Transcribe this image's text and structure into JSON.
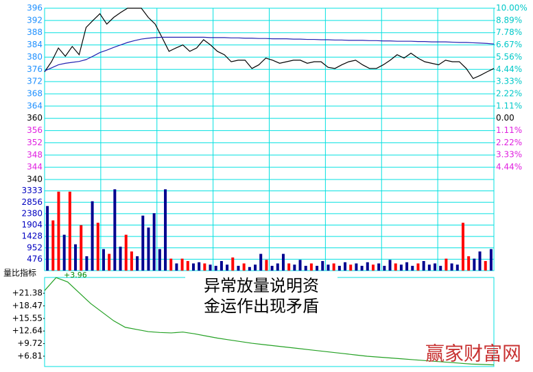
{
  "chart_data": [
    {
      "type": "line",
      "ylim": [
        340,
        396
      ],
      "yticks": [
        396,
        392,
        388,
        384,
        380,
        376,
        372,
        368,
        364,
        360,
        356,
        352,
        348,
        344,
        340
      ],
      "y2lim": [
        -5.56,
        10
      ],
      "y2ticks": [
        {
          "value": 10,
          "label": "10.00%"
        },
        {
          "value": 8.89,
          "label": "8.89%"
        },
        {
          "value": 7.78,
          "label": "7.78%"
        },
        {
          "value": 6.67,
          "label": "6.67%"
        },
        {
          "value": 5.56,
          "label": "5.56%"
        },
        {
          "value": 4.44,
          "label": "4.44%"
        },
        {
          "value": 3.33,
          "label": "3.33%"
        },
        {
          "value": 2.22,
          "label": "2.22%"
        },
        {
          "value": 1.11,
          "label": "1.11%"
        },
        {
          "value": 0,
          "label": "0.00"
        },
        {
          "value": -1.11,
          "label": "1.11%"
        },
        {
          "value": -2.22,
          "label": "2.22%"
        },
        {
          "value": -3.33,
          "label": "3.33%"
        },
        {
          "value": -4.44,
          "label": "4.44%"
        }
      ],
      "up_color": "#1e90ff",
      "down_color": "#e020e0",
      "flat_color": "#000000",
      "grid": true,
      "grid_color": "#00e0e0",
      "series": [
        {
          "color": "#000000",
          "values": [
            375.2,
            378.5,
            383,
            380.3,
            383.5,
            380.8,
            389.7,
            392,
            394.2,
            390.8,
            393,
            394.6,
            396,
            396,
            396,
            393,
            390.8,
            386.4,
            381.9,
            383,
            384,
            381.9,
            383,
            385.7,
            384,
            381.9,
            380.8,
            378.5,
            379,
            379,
            376.3,
            377.5,
            379.7,
            379,
            378,
            378.5,
            379,
            379,
            378,
            378.5,
            378.5,
            376.7,
            376.3,
            377.5,
            378.5,
            379,
            377.5,
            376.3,
            376.3,
            377.5,
            379,
            380.8,
            379.7,
            381.3,
            379.7,
            378.5,
            378,
            377.5,
            379,
            378.5,
            378.5,
            376.3,
            373,
            374,
            375.2,
            376.3
          ]
        },
        {
          "color": "#2020b0",
          "values": [
            375.5,
            376.5,
            377.5,
            378,
            378.3,
            378.6,
            379.2,
            380.3,
            381.5,
            382.3,
            383.2,
            384,
            384.8,
            385.4,
            385.9,
            386.2,
            386.4,
            386.5,
            386.5,
            386.5,
            386.5,
            386.5,
            386.5,
            386.5,
            386.4,
            386.4,
            386.4,
            386.3,
            386.3,
            386.2,
            386.2,
            386.1,
            386.1,
            386,
            386,
            386,
            385.9,
            385.9,
            385.8,
            385.8,
            385.7,
            385.7,
            385.6,
            385.6,
            385.5,
            385.5,
            385.5,
            385.4,
            385.4,
            385.3,
            385.3,
            385.2,
            385.2,
            385.2,
            385.1,
            385.1,
            385,
            385,
            385,
            384.9,
            384.8,
            384.8,
            384.7,
            384.6,
            384.5,
            384.3
          ]
        }
      ]
    },
    {
      "type": "bar",
      "ylim": [
        0,
        3810
      ],
      "yticks": [
        476,
        952,
        1428,
        1904,
        2380,
        2856,
        3333
      ],
      "tick_color": "#0000c0",
      "grid": true,
      "grid_color": "#00e0e0",
      "up_color": "#ff0000",
      "down_color": "#000090",
      "values": [
        2700,
        2100,
        3300,
        1500,
        3300,
        1100,
        1900,
        600,
        2900,
        2000,
        900,
        700,
        3400,
        1000,
        1500,
        800,
        600,
        2300,
        1800,
        2400,
        900,
        3400,
        500,
        300,
        500,
        400,
        300,
        350,
        300,
        250,
        200,
        400,
        250,
        550,
        200,
        300,
        150,
        250,
        700,
        450,
        200,
        300,
        700,
        300,
        250,
        450,
        200,
        300,
        200,
        400,
        250,
        300,
        200,
        350,
        250,
        300,
        200,
        350,
        250,
        300,
        200,
        450,
        300,
        250,
        350,
        200,
        300,
        400,
        250,
        300,
        200,
        500,
        300,
        250,
        2000,
        600,
        500,
        800,
        400,
        900
      ],
      "rising": [
        false,
        true,
        true,
        false,
        true,
        false,
        true,
        false,
        false,
        true,
        false,
        true,
        false,
        false,
        true,
        true,
        false,
        false,
        false,
        false,
        false,
        false,
        true,
        false,
        true,
        true,
        false,
        false,
        true,
        false,
        false,
        false,
        false,
        true,
        false,
        true,
        false,
        false,
        false,
        true,
        false,
        false,
        false,
        true,
        false,
        false,
        false,
        true,
        false,
        false,
        false,
        true,
        false,
        false,
        true,
        false,
        false,
        false,
        true,
        false,
        false,
        false,
        true,
        false,
        false,
        false,
        true,
        false,
        false,
        false,
        false,
        true,
        false,
        false,
        true,
        true,
        false,
        false,
        true,
        false
      ]
    },
    {
      "type": "line",
      "title": "量比指标",
      "annotation": "+3.96",
      "ylim": [
        4.42,
        25.04
      ],
      "yticks": [
        {
          "value": 21.38,
          "label": "+21.38"
        },
        {
          "value": 18.47,
          "label": "+18.47"
        },
        {
          "value": 15.55,
          "label": "+15.55"
        },
        {
          "value": 12.64,
          "label": "+12.64"
        },
        {
          "value": 9.72,
          "label": "+9.72"
        },
        {
          "value": 6.81,
          "label": "+6.81"
        }
      ],
      "tick_color": "#000000",
      "grid": false,
      "series": [
        {
          "color": "#22a022",
          "values": [
            22,
            25,
            24,
            21.5,
            19,
            17,
            15,
            13.5,
            13,
            12.5,
            12.3,
            12.2,
            12.4,
            12,
            11.5,
            11,
            10.6,
            10.2,
            9.8,
            9.5,
            9.2,
            8.9,
            8.6,
            8.3,
            8,
            7.7,
            7.4,
            7.1,
            6.8,
            6.6,
            6.4,
            6.2,
            6,
            5.8,
            5.6,
            5.4,
            5.2,
            5,
            4.9,
            4.8
          ]
        }
      ]
    }
  ],
  "note": [
    "异常放量说明资",
    "金运作出现矛盾"
  ],
  "watermark": "赢家财富网"
}
